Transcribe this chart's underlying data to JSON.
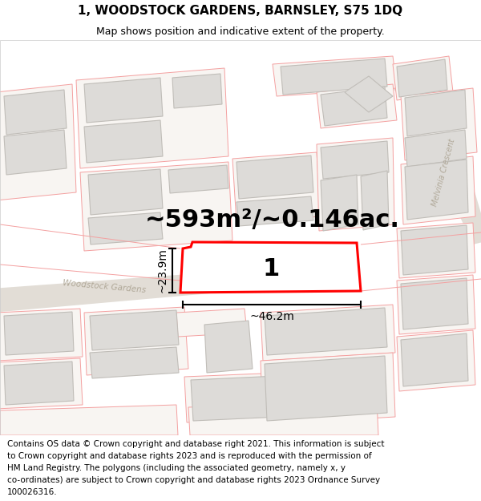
{
  "title": "1, WOODSTOCK GARDENS, BARNSLEY, S75 1DQ",
  "subtitle": "Map shows position and indicative extent of the property.",
  "area_text": "~593m²/~0.146ac.",
  "width_label": "~46.2m",
  "height_label": "~23.9m",
  "plot_number": "1",
  "footer_lines": [
    "Contains OS data © Crown copyright and database right 2021. This information is subject",
    "to Crown copyright and database rights 2023 and is reproduced with the permission of",
    "HM Land Registry. The polygons (including the associated geometry, namely x, y",
    "co-ordinates) are subject to Crown copyright and database rights 2023 Ordnance Survey",
    "100026316."
  ],
  "bg_color": "#f7f5f2",
  "highlight_fill": "#ffffff",
  "highlight_stroke": "#ff0000",
  "pink_line_color": "#f4a0a0",
  "gray_fill": "#dddbd8",
  "gray_stroke": "#c0bdb8",
  "white_fill": "#fafaf8",
  "title_fontsize": 11,
  "subtitle_fontsize": 9,
  "area_fontsize": 22,
  "label_fontsize": 10,
  "plot_num_fontsize": 22,
  "footer_fontsize": 7.5,
  "road_color": "#e8e3dc",
  "road_label_color": "#b0a898"
}
